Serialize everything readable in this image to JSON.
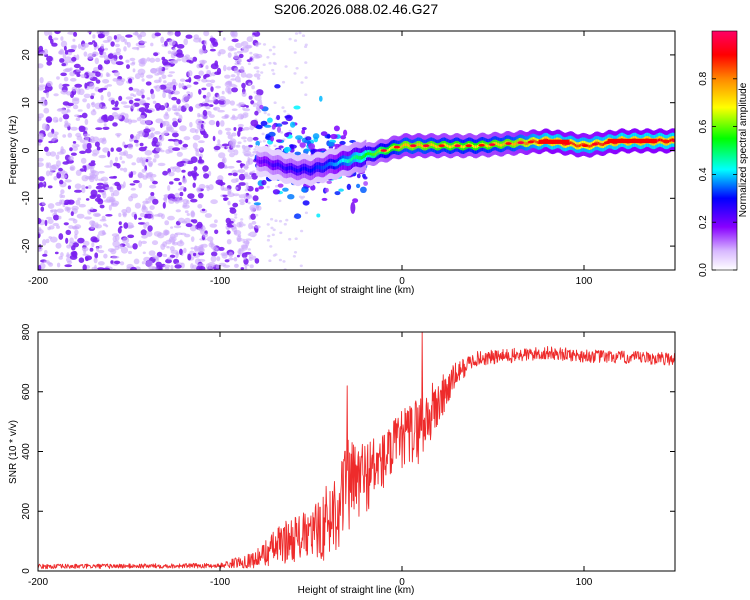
{
  "chart_data": [
    {
      "type": "heatmap",
      "title": "S206.2026.088.02.46.G27",
      "xlabel": "Height of straight line (km)",
      "ylabel": "Frequency (Hz)",
      "xlim": [
        -200,
        150
      ],
      "ylim": [
        -25,
        25
      ],
      "xticks": [
        -200,
        -100,
        0,
        100
      ],
      "xtick_labels": [
        "-200",
        "-100",
        "0",
        "100"
      ],
      "yticks": [
        -20,
        -10,
        0,
        10,
        20
      ],
      "ytick_labels": [
        "-20",
        "-10",
        "0",
        "10",
        "20"
      ],
      "colorbar": {
        "label": "Normalized spectral amplitude",
        "range": [
          0,
          1
        ],
        "ticks": [
          0.0,
          0.2,
          0.4,
          0.6,
          0.8
        ],
        "tick_labels": [
          "0.0",
          "0.2",
          "0.4",
          "0.6",
          "0.8"
        ],
        "colormap": [
          "#e8d8ff",
          "#8800ff",
          "#0000ff",
          "#00ffff",
          "#00ff00",
          "#ffff00",
          "#ff8800",
          "#ff0000",
          "#ff0066"
        ]
      },
      "noise_region": {
        "x": [
          -200,
          -80
        ],
        "amplitude": "low (0.05-0.12)"
      },
      "transition_region": {
        "x": [
          -80,
          -20
        ],
        "frequency_center": [
          0,
          -3
        ],
        "scatter_hz": 6
      },
      "signal_track": {
        "heights_km": [
          -80,
          -70,
          -60,
          -50,
          -40,
          -30,
          -20,
          -10,
          0,
          10,
          20,
          40,
          60,
          80,
          100,
          120,
          150
        ],
        "frequency_hz": [
          -2,
          -3,
          -4,
          -4,
          -3,
          -2,
          -1,
          0,
          1,
          1,
          1,
          1,
          1.5,
          2,
          1,
          2,
          2
        ],
        "amplitude": [
          0.2,
          0.25,
          0.28,
          0.3,
          0.35,
          0.45,
          0.55,
          0.65,
          0.75,
          0.75,
          0.72,
          0.7,
          0.75,
          0.9,
          0.85,
          0.9,
          0.9
        ]
      },
      "isolated_feature": {
        "x": -27,
        "y": -12
      }
    },
    {
      "type": "line",
      "xlabel": "Height of straight line (km)",
      "ylabel": "SNR (10 * v/v)",
      "xlim": [
        -200,
        150
      ],
      "ylim": [
        0,
        800
      ],
      "xticks": [
        -200,
        -100,
        0,
        100
      ],
      "xtick_labels": [
        "-200",
        "-100",
        "0",
        "100"
      ],
      "yticks": [
        0,
        200,
        400,
        600,
        800
      ],
      "ytick_labels": [
        "0",
        "200",
        "400",
        "600",
        "800"
      ],
      "line_color": "#ee2b2b",
      "envelope": {
        "x": [
          -200,
          -100,
          -80,
          -70,
          -60,
          -50,
          -40,
          -30,
          -20,
          -10,
          0,
          10,
          20,
          30,
          40,
          60,
          80,
          100,
          120,
          150
        ],
        "mean": [
          15,
          18,
          40,
          80,
          110,
          120,
          170,
          280,
          320,
          370,
          440,
          480,
          560,
          660,
          710,
          720,
          730,
          720,
          715,
          710
        ],
        "spread": [
          8,
          8,
          30,
          60,
          80,
          80,
          140,
          160,
          130,
          100,
          100,
          120,
          90,
          40,
          25,
          25,
          22,
          22,
          22,
          22
        ]
      },
      "peaks": [
        {
          "x": -30,
          "y": 620
        },
        {
          "x": 11,
          "y": 800
        }
      ]
    }
  ]
}
